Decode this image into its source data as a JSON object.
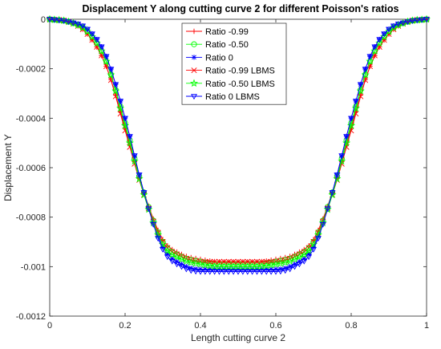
{
  "chart_data": {
    "type": "line",
    "title": "Displacement Y along cutting curve 2 for different Poisson's ratios",
    "xlabel": "Length cutting curve 2",
    "ylabel": "Displacement Y",
    "xlim": [
      0,
      1
    ],
    "ylim": [
      -0.0012,
      0
    ],
    "xticks": [
      "0",
      "0.2",
      "0.4",
      "0.6",
      "0.8",
      "1"
    ],
    "xtick_values": [
      0,
      0.2,
      0.4,
      0.6,
      0.8,
      1
    ],
    "yticks": [
      "0",
      "-0.0002",
      "-0.0004",
      "-0.0006",
      "-0.0008",
      "-0.001",
      "-0.0012"
    ],
    "ytick_values": [
      0,
      -0.0002,
      -0.0004,
      -0.0006,
      -0.0008,
      -0.001,
      -0.0012
    ],
    "grid": false,
    "legend_position": "top-center",
    "x": [
      0,
      0.05,
      0.1,
      0.15,
      0.2,
      0.25,
      0.3,
      0.35,
      0.4,
      0.45,
      0.5,
      0.55,
      0.6,
      0.65,
      0.7,
      0.75,
      0.8,
      0.85,
      0.9,
      0.95,
      1
    ],
    "series": [
      {
        "name": "Ratio -0.99",
        "color": "#ff0000",
        "marker": "plus",
        "values": [
          0,
          -1e-05,
          -6e-05,
          -0.00019,
          -0.00044,
          -0.0007,
          -0.00089,
          -0.00095,
          -0.00097,
          -0.00098,
          -0.00098,
          -0.00098,
          -0.00097,
          -0.00095,
          -0.00089,
          -0.0007,
          -0.00044,
          -0.00019,
          -6e-05,
          -1e-05,
          0
        ]
      },
      {
        "name": "Ratio -0.50",
        "color": "#00ff00",
        "marker": "circle",
        "values": [
          0,
          -1e-05,
          -5e-05,
          -0.00017,
          -0.00042,
          -0.0007,
          -0.0009,
          -0.00096,
          -0.00098,
          -0.00099,
          -0.00099,
          -0.00099,
          -0.00098,
          -0.00096,
          -0.0009,
          -0.0007,
          -0.00042,
          -0.00017,
          -5e-05,
          -1e-05,
          0
        ]
      },
      {
        "name": "Ratio 0",
        "color": "#0000ff",
        "marker": "asterisk",
        "values": [
          0,
          -1e-05,
          -4e-05,
          -0.00015,
          -0.0004,
          -0.0007,
          -0.00092,
          -0.00099,
          -0.00101,
          -0.00101,
          -0.00101,
          -0.00101,
          -0.00101,
          -0.00099,
          -0.00092,
          -0.0007,
          -0.0004,
          -0.00015,
          -4e-05,
          -1e-05,
          0
        ]
      },
      {
        "name": "Ratio -0.99 LBMS",
        "color": "#ff0000",
        "marker": "x",
        "values": [
          0,
          -1e-05,
          -6e-05,
          -0.00019,
          -0.00045,
          -0.00071,
          -0.0009,
          -0.00096,
          -0.00098,
          -0.00098,
          -0.00098,
          -0.00098,
          -0.00098,
          -0.00096,
          -0.0009,
          -0.00071,
          -0.00045,
          -0.00019,
          -6e-05,
          -1e-05,
          0
        ]
      },
      {
        "name": "Ratio -0.50 LBMS",
        "color": "#00ff00",
        "marker": "star",
        "values": [
          0,
          -1e-05,
          -5e-05,
          -0.00017,
          -0.00043,
          -0.00071,
          -0.00091,
          -0.00097,
          -0.00099,
          -0.001,
          -0.001,
          -0.001,
          -0.00099,
          -0.00097,
          -0.00091,
          -0.00071,
          -0.00043,
          -0.00017,
          -5e-05,
          -1e-05,
          0
        ]
      },
      {
        "name": "Ratio 0 LBMS",
        "color": "#0000ff",
        "marker": "triangle-down",
        "values": [
          0,
          -1e-05,
          -4e-05,
          -0.00015,
          -0.0004,
          -0.0007,
          -0.00093,
          -0.001,
          -0.00102,
          -0.00102,
          -0.00102,
          -0.00102,
          -0.00102,
          -0.001,
          -0.00093,
          -0.0007,
          -0.0004,
          -0.00015,
          -4e-05,
          -1e-05,
          0
        ]
      }
    ]
  }
}
